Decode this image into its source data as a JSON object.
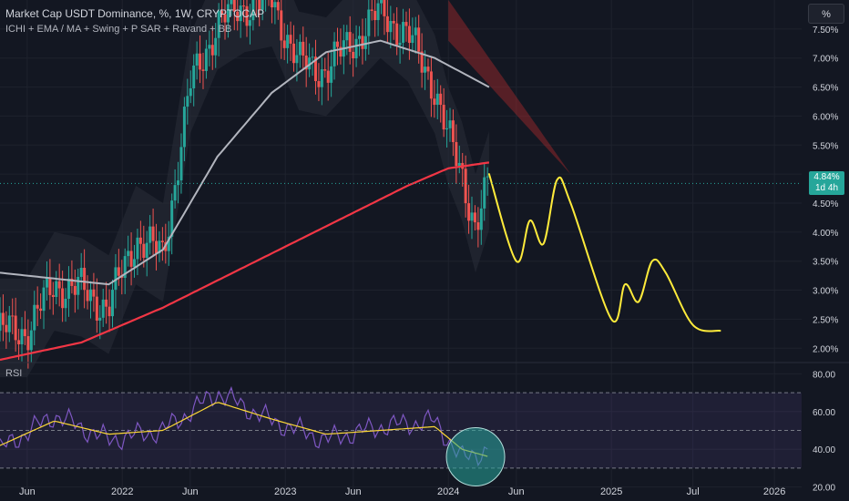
{
  "legend": {
    "title": "Market Cap USDT Dominance, %, 1W, CRYPTOCAP",
    "indicators": "ICHI + EMA / MA + Swing + P SAR + Ravand + BB"
  },
  "rsi_label": "RSI",
  "unit_button": "%",
  "price_tag": {
    "value": "4.84%",
    "countdown": "1d 4h"
  },
  "chart_data": [
    {
      "type": "line",
      "title": "Market Cap USDT Dominance, %, 1W, CRYPTOCAP",
      "ylim": [
        1.8,
        8.0
      ],
      "y_ticks": [
        "2.00%",
        "2.50%",
        "3.00%",
        "3.50%",
        "4.00%",
        "4.50%",
        "5.00%",
        "5.50%",
        "6.00%",
        "6.50%",
        "7.00%",
        "7.50%"
      ],
      "x_ticks": [
        "Jun",
        "2022",
        "Jun",
        "2023",
        "Jun",
        "2024",
        "Jun",
        "2025",
        "Jul",
        "2026"
      ],
      "series": [
        {
          "role": "price_weekly_closes",
          "x": [
            "2021-06",
            "2021-08",
            "2021-10",
            "2021-12",
            "2022-02",
            "2022-04",
            "2022-06",
            "2022-08",
            "2022-10",
            "2022-12",
            "2023-02",
            "2023-04",
            "2023-06",
            "2023-08",
            "2023-10",
            "2023-12",
            "2024-01",
            "2024-02",
            "2024-03",
            "2024-04"
          ],
          "values": [
            2.3,
            3.1,
            3.0,
            2.7,
            3.9,
            3.6,
            6.5,
            7.6,
            7.9,
            8.0,
            6.9,
            6.8,
            7.3,
            7.8,
            7.4,
            6.5,
            5.6,
            5.0,
            4.1,
            4.84
          ]
        },
        {
          "role": "moving_average_200",
          "x": [
            "2021-04",
            "2021-10",
            "2022-04",
            "2022-10",
            "2023-04",
            "2023-10",
            "2024-01",
            "2024-04"
          ],
          "values": [
            1.8,
            2.1,
            2.7,
            3.4,
            4.1,
            4.8,
            5.1,
            5.2
          ]
        },
        {
          "role": "moving_average_50",
          "x": [
            "2021-04",
            "2021-08",
            "2021-12",
            "2022-04",
            "2022-08",
            "2022-12",
            "2023-04",
            "2023-08",
            "2023-12",
            "2024-04"
          ],
          "values": [
            3.3,
            3.2,
            3.1,
            3.7,
            5.3,
            6.4,
            7.1,
            7.3,
            7.0,
            6.5
          ]
        },
        {
          "role": "projection_path",
          "x": [
            "2024-04",
            "2024-06",
            "2024-07",
            "2024-08",
            "2024-09",
            "2024-10",
            "2025-01",
            "2025-02",
            "2025-03",
            "2025-04",
            "2025-05",
            "2025-07",
            "2025-09"
          ],
          "values": [
            5.0,
            3.5,
            4.2,
            3.8,
            4.9,
            4.5,
            2.5,
            3.1,
            2.8,
            3.5,
            3.3,
            2.4,
            2.3
          ]
        }
      ]
    },
    {
      "type": "line",
      "title": "RSI",
      "ylim": [
        15,
        85
      ],
      "y_ticks": [
        "20.00",
        "40.00",
        "60.00",
        "80.00"
      ],
      "bands": [
        30,
        50,
        70
      ],
      "series": [
        {
          "role": "rsi",
          "x": [
            "2021-04",
            "2021-08",
            "2021-12",
            "2022-04",
            "2022-08",
            "2022-12",
            "2023-04",
            "2023-08",
            "2023-12",
            "2024-02",
            "2024-04"
          ],
          "values": [
            40,
            58,
            45,
            50,
            70,
            55,
            45,
            52,
            55,
            35,
            40
          ]
        },
        {
          "role": "rsi_ma",
          "x": [
            "2021-04",
            "2021-08",
            "2021-12",
            "2022-04",
            "2022-08",
            "2022-12",
            "2023-04",
            "2023-08",
            "2023-12",
            "2024-02",
            "2024-04"
          ],
          "values": [
            42,
            55,
            48,
            50,
            65,
            56,
            48,
            50,
            52,
            40,
            36
          ]
        }
      ]
    }
  ],
  "colors": {
    "background": "#131722",
    "up": "#26a69a",
    "down": "#ef5350",
    "ma200": "#f23645",
    "ma50": "#b2b5be",
    "projection": "#ffeb3b",
    "rsi": "#7e57c2",
    "rsi_ma": "#fdd835",
    "ichimoku_cloud": "#d32f2f"
  }
}
